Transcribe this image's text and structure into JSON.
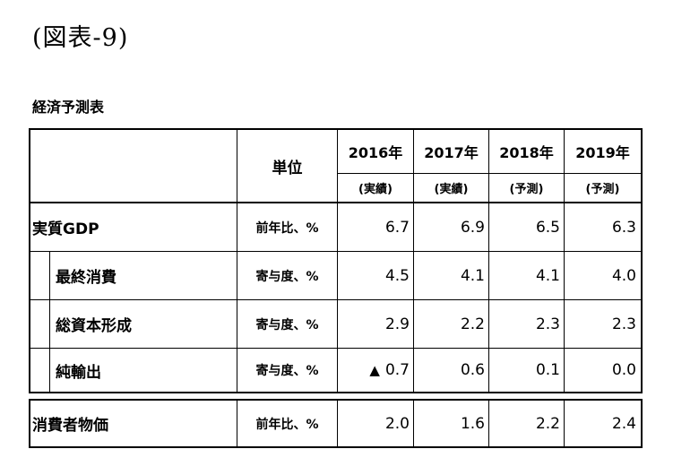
{
  "figure_title": "(図表-9)",
  "table_title": "経済予測表",
  "header": {
    "unit_label": "単位",
    "years": [
      "2016年",
      "2017年",
      "2018年",
      "2019年"
    ],
    "kinds": [
      "(実績)",
      "(実績)",
      "(予測)",
      "(予測)"
    ]
  },
  "rows": [
    {
      "label": "実質GDP",
      "unit": "前年比、%",
      "values": [
        "6.7",
        "6.9",
        "6.5",
        "6.3"
      ]
    },
    {
      "label": "最終消費",
      "unit": "寄与度、%",
      "values": [
        "4.5",
        "4.1",
        "4.1",
        "4.0"
      ]
    },
    {
      "label": "総資本形成",
      "unit": "寄与度、%",
      "values": [
        "2.9",
        "2.2",
        "2.3",
        "2.3"
      ]
    },
    {
      "label": "純輸出",
      "unit": "寄与度、%",
      "neg_marker": "▲",
      "values": [
        "0.7",
        "0.6",
        "0.1",
        "0.0"
      ]
    },
    {
      "label": "消費者物価",
      "unit": "前年比、%",
      "values": [
        "2.0",
        "1.6",
        "2.2",
        "2.4"
      ]
    }
  ]
}
